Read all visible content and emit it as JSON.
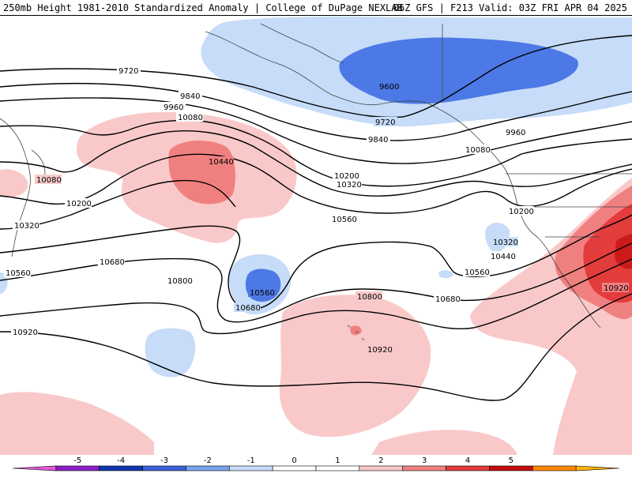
{
  "header": {
    "title_left": "250mb Height 1981-2010 Standardized Anomaly | College of DuPage NEXLAB",
    "title_right": "06Z GFS | F213 Valid: 03Z FRI APR 04 2025"
  },
  "map": {
    "contour_labels": {
      "c1": "9720",
      "c2": "9840",
      "c3": "9960",
      "c4": "10080",
      "c5": "10440",
      "c6": "10080",
      "c7": "10200",
      "c8": "10320",
      "c9": "10680",
      "c10": "10560",
      "c11": "10800",
      "c12": "10920",
      "c13": "10560",
      "c14": "10680",
      "c15": "9600",
      "c16": "9720",
      "c17": "9840",
      "c18": "9960",
      "c19": "10080",
      "c20": "10200",
      "c21": "10320",
      "c22": "10560",
      "c23": "10800",
      "c24": "10920",
      "c25": "10680",
      "c26": "10560",
      "c27": "10440",
      "c28": "10320",
      "c29": "10200",
      "c30": "10920"
    },
    "colors": {
      "neg_light": "#c6dcf8",
      "neg_med": "#4d79e6",
      "neg_strong": "#2a52c9",
      "pos_light": "#f9c9c9",
      "pos_med": "#f08080",
      "pos_strong": "#e33c3c",
      "pos_dark": "#cc1a1a"
    }
  },
  "colorbar": {
    "ticks": [
      "-5",
      "-4",
      "-3",
      "-2",
      "-1",
      "0",
      "1",
      "2",
      "3",
      "4",
      "5"
    ],
    "colors": [
      "#e05ad6",
      "#8a1fc8",
      "#1236b0",
      "#3b62d9",
      "#7aa4ee",
      "#c6dcf8",
      "#ffffff",
      "#ffffff",
      "#f9c9c9",
      "#f08080",
      "#e33c3c",
      "#c40b0b",
      "#ff8800",
      "#ffb400"
    ]
  }
}
